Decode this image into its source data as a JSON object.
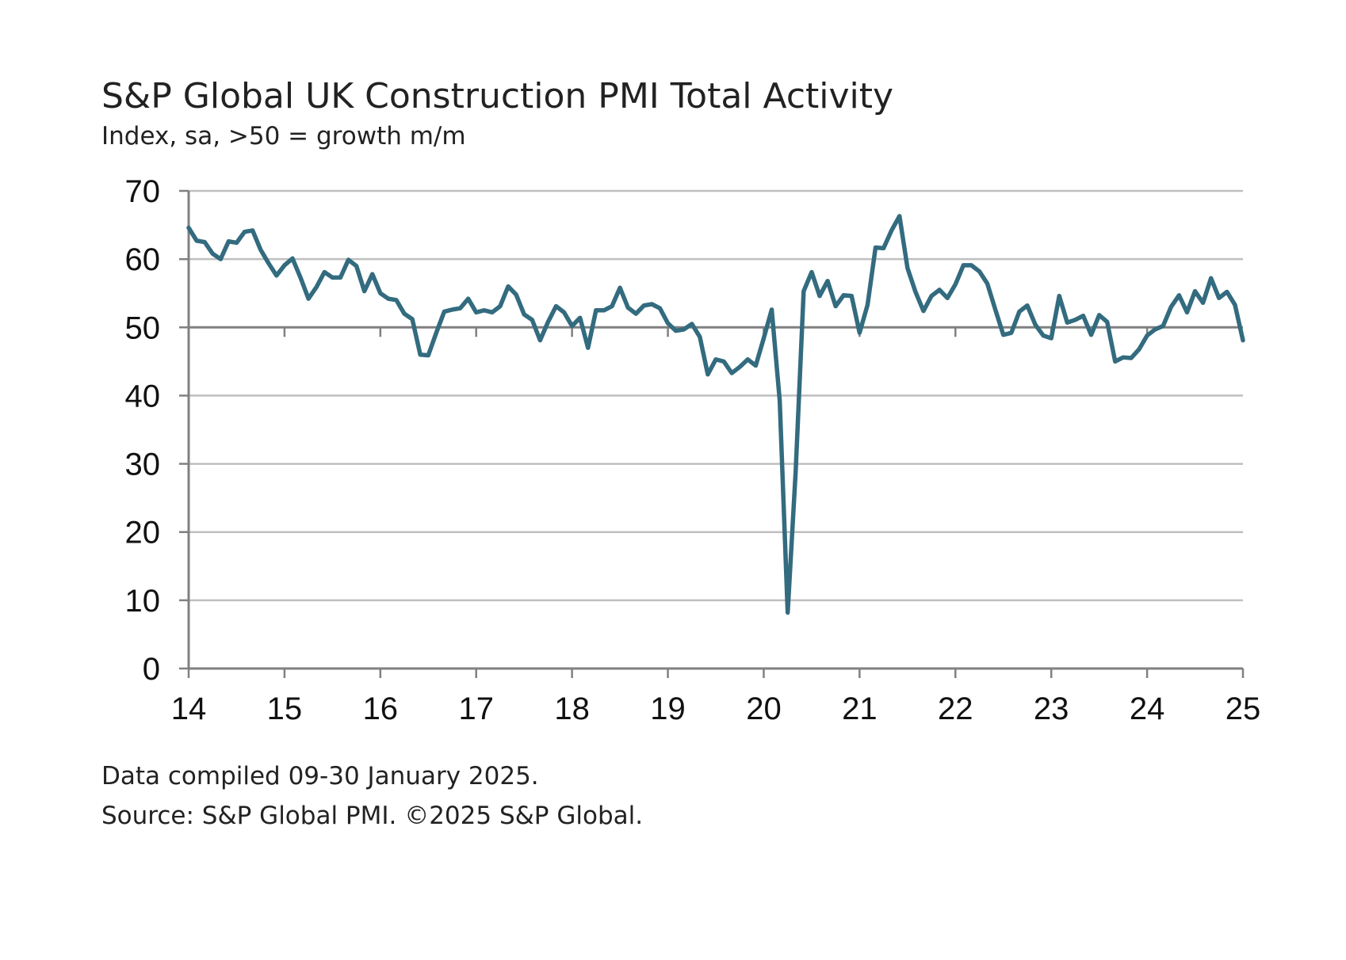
{
  "chart_data": {
    "type": "line",
    "title": "S&P Global UK Construction PMI Total Activity",
    "subtitle": "Index, sa, >50 = growth m/m",
    "xlabel": "",
    "ylabel": "",
    "x_tick_labels": [
      "14",
      "15",
      "16",
      "17",
      "18",
      "19",
      "20",
      "21",
      "22",
      "23",
      "24",
      "25"
    ],
    "y_tick_labels": [
      "0",
      "10",
      "20",
      "30",
      "40",
      "50",
      "60",
      "70"
    ],
    "ylim": [
      0,
      70
    ],
    "xlim": [
      2014.0,
      2025.0
    ],
    "reference_line": 50,
    "grid": true,
    "legend": "none",
    "colors": {
      "line": "#336b7f",
      "grid": "#bfbfbf",
      "axis": "#808080"
    },
    "series": [
      {
        "name": "",
        "x_start": 2014.0,
        "x_step_months": 1,
        "values": [
          64.6,
          62.7,
          62.5,
          60.8,
          60.0,
          62.6,
          62.4,
          64.0,
          64.2,
          61.4,
          59.4,
          57.6,
          59.1,
          60.1,
          57.3,
          54.2,
          55.9,
          58.1,
          57.3,
          57.3,
          59.9,
          59.0,
          55.3,
          57.8,
          55.0,
          54.2,
          54.0,
          52.0,
          51.2,
          46.0,
          45.9,
          49.2,
          52.3,
          52.6,
          52.8,
          54.2,
          52.2,
          52.5,
          52.2,
          53.1,
          56.0,
          54.8,
          51.9,
          51.1,
          48.1,
          50.8,
          53.1,
          52.2,
          50.2,
          51.4,
          47.0,
          52.5,
          52.5,
          53.1,
          55.8,
          52.9,
          52.0,
          53.2,
          53.4,
          52.8,
          50.6,
          49.5,
          49.7,
          50.5,
          48.6,
          43.1,
          45.3,
          45.0,
          43.3,
          44.2,
          45.3,
          44.4,
          48.4,
          52.6,
          39.3,
          8.2,
          28.9,
          55.3,
          58.1,
          54.6,
          56.8,
          53.1,
          54.7,
          54.6,
          49.2,
          53.3,
          61.7,
          61.6,
          64.2,
          66.3,
          58.7,
          55.2,
          52.4,
          54.6,
          55.5,
          54.3,
          56.3,
          59.1,
          59.1,
          58.2,
          56.4,
          52.6,
          48.9,
          49.2,
          52.3,
          53.2,
          50.4,
          48.8,
          48.4,
          54.6,
          50.7,
          51.1,
          51.7,
          48.9,
          51.8,
          50.8,
          45.0,
          45.6,
          45.5,
          46.8,
          48.8,
          49.7,
          50.2,
          53.0,
          54.7,
          52.2,
          55.3,
          53.6,
          57.2,
          54.3,
          55.2,
          53.3,
          48.1
        ]
      }
    ]
  },
  "footer": {
    "line1": "Data compiled 09-30 January 2025.",
    "line2": "Source: S&P Global PMI. ©2025 S&P Global."
  }
}
